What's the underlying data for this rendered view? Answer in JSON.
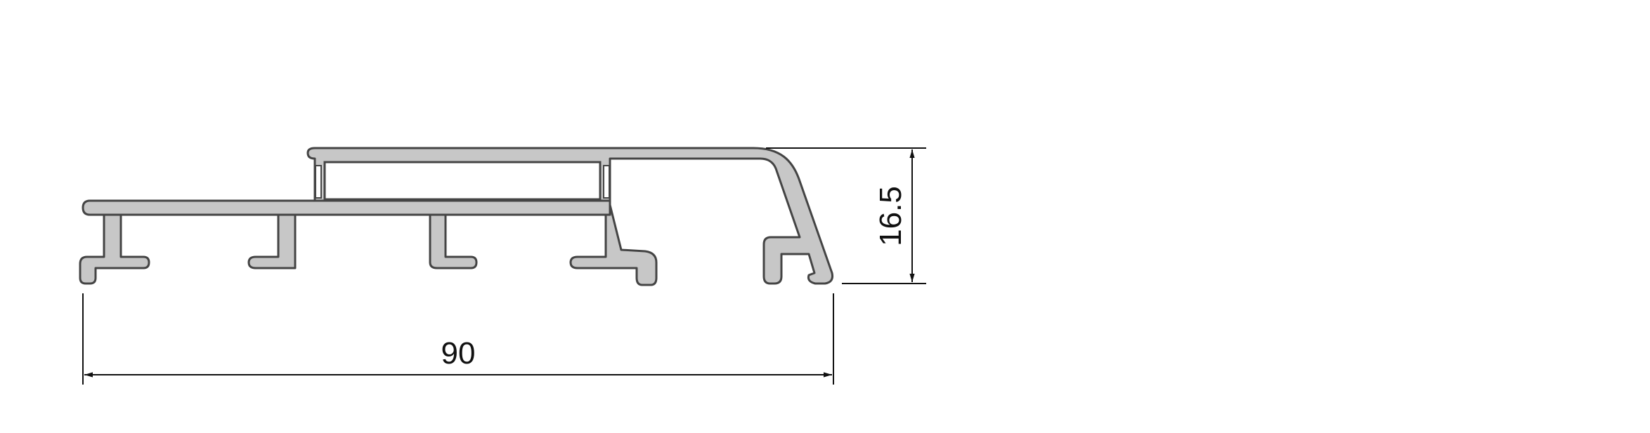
{
  "drawing": {
    "dimensions": {
      "width_label": "90",
      "height_label": "16.5"
    },
    "colors": {
      "profile_fill": "#c7c7c7",
      "profile_stroke": "#444444",
      "dimension_line": "#111111",
      "background": "#ffffff"
    }
  }
}
